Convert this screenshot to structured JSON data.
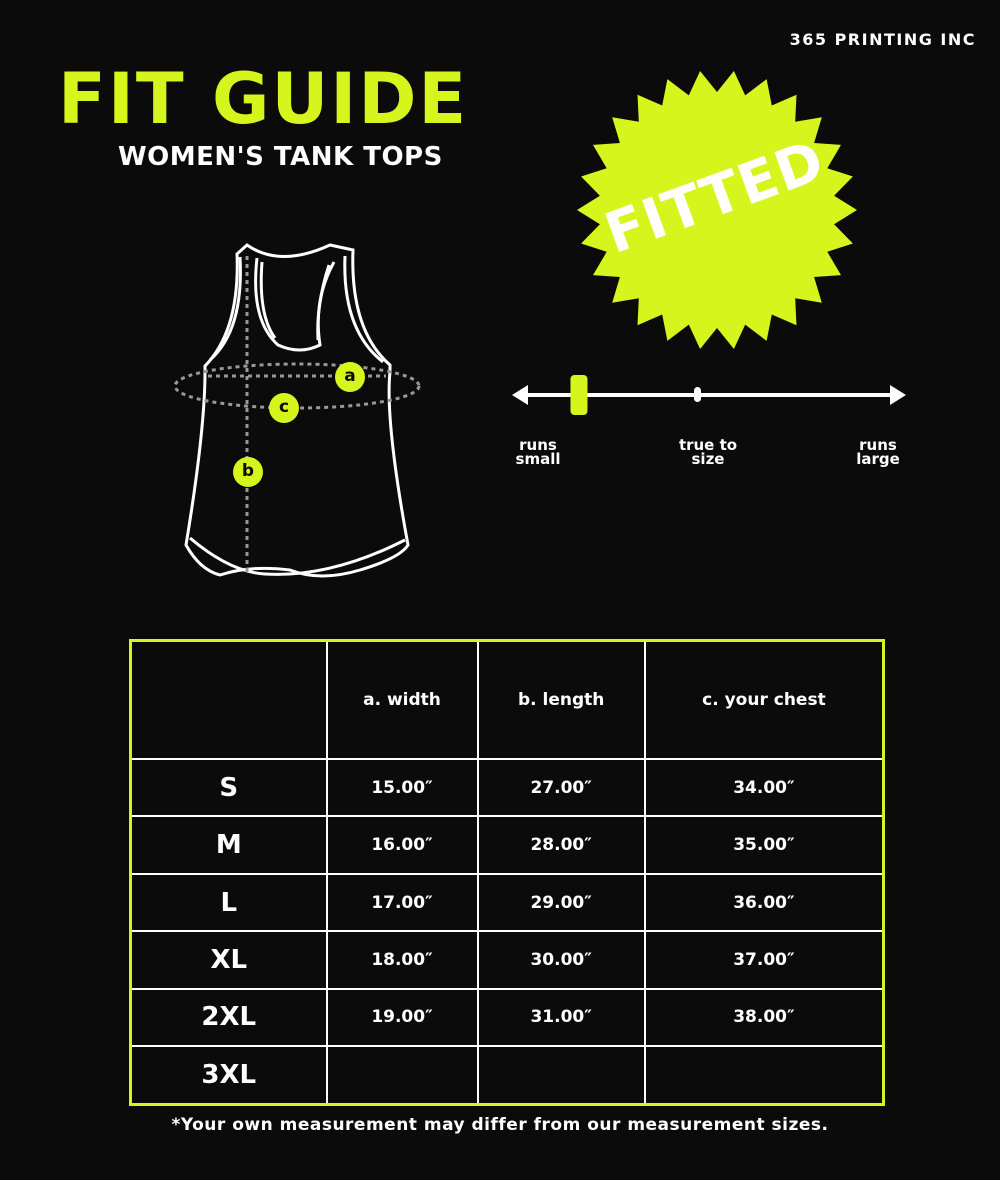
{
  "brand": "365 PRINTING INC",
  "title": "FIT GUIDE",
  "subtitle": "WOMEN'S TANK TOPS",
  "badge": "FITTED",
  "colors": {
    "accent": "#d6f51c",
    "background": "#0b0b0b",
    "line": "#ffffff"
  },
  "diagram_markers": [
    "a",
    "c",
    "b"
  ],
  "fit_scale": {
    "labels": [
      "runs small",
      "true to size",
      "runs large"
    ],
    "position_percent": 17
  },
  "table": {
    "headers": [
      "",
      "a. width",
      "b. length",
      "c. your chest"
    ],
    "rows": [
      [
        "S",
        "15.00″",
        "27.00″",
        "34.00″"
      ],
      [
        "M",
        "16.00″",
        "28.00″",
        "35.00″"
      ],
      [
        "L",
        "17.00″",
        "29.00″",
        "36.00″"
      ],
      [
        "XL",
        "18.00″",
        "30.00″",
        "37.00″"
      ],
      [
        "2XL",
        "19.00″",
        "31.00″",
        "38.00″"
      ],
      [
        "3XL",
        "",
        "",
        ""
      ]
    ]
  },
  "note": "*Your own measurement may differ from our measurement sizes."
}
